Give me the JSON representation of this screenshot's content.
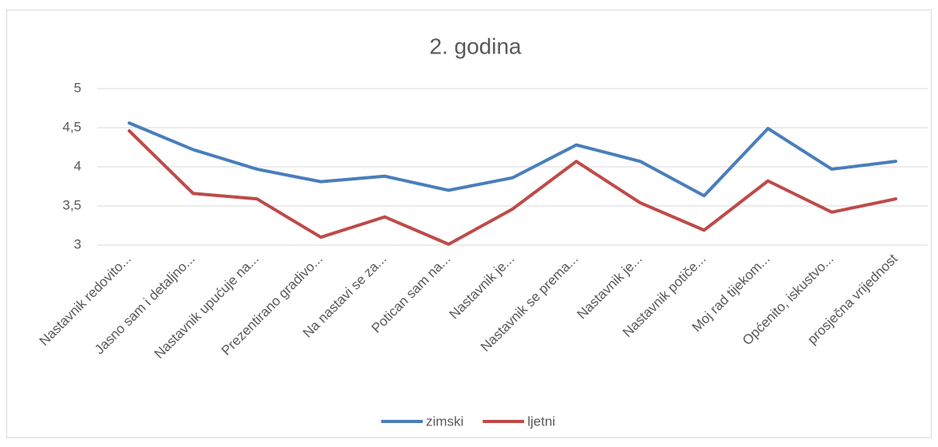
{
  "chart_data": {
    "type": "line",
    "title": "2. godina",
    "categories": [
      "Nastavnik redovito...",
      "Jasno sam i detaljno...",
      "Nastavnik upućuje na...",
      "Prezentirano gradivo...",
      "Na nastavi se za...",
      "Potican sam na...",
      "Nastavnik je...",
      "Nastavnik se prema...",
      "Nastavnik je...",
      "Nastavnik potiče...",
      "Moj rad tijekom...",
      "Općenito, iskustvo...",
      "prosječna vrijednost"
    ],
    "series": [
      {
        "name": "zimski",
        "color": "#4a7ebb",
        "values": [
          4.56,
          4.22,
          3.97,
          3.81,
          3.88,
          3.7,
          3.86,
          4.28,
          4.07,
          3.63,
          4.49,
          3.97,
          4.07
        ]
      },
      {
        "name": "ljetni",
        "color": "#be4b48",
        "values": [
          4.46,
          3.66,
          3.59,
          3.1,
          3.36,
          3.01,
          3.46,
          4.07,
          3.54,
          3.19,
          3.82,
          3.42,
          3.59
        ]
      }
    ],
    "ylim": [
      3,
      5
    ],
    "yticks": [
      3,
      {
        "value": 3.5,
        "label": "3,5"
      },
      4,
      {
        "value": 4.5,
        "label": "4,5"
      },
      5
    ],
    "grid": true,
    "legend": "bottom"
  }
}
